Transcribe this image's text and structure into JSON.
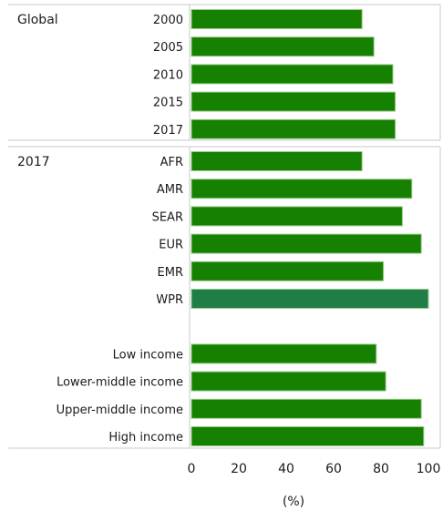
{
  "chart_data": {
    "type": "bar",
    "orientation": "horizontal",
    "xlabel": "(%)",
    "xlim": [
      0,
      100
    ],
    "x_ticks": [
      "0",
      "20",
      "40",
      "60",
      "80",
      "100"
    ],
    "grid": false,
    "colors": {
      "bar": "#168000",
      "highlight": "#1e7e45",
      "bar_edge": "#9acb8e"
    },
    "panels": [
      {
        "title": "Global",
        "rows": [
          {
            "label": "2000",
            "value": 72
          },
          {
            "label": "2005",
            "value": 77
          },
          {
            "label": "2010",
            "value": 85
          },
          {
            "label": "2015",
            "value": 86
          },
          {
            "label": "2017",
            "value": 86
          }
        ]
      },
      {
        "title": "2017",
        "rows": [
          {
            "label": "AFR",
            "value": 72
          },
          {
            "label": "AMR",
            "value": 93
          },
          {
            "label": "SEAR",
            "value": 89
          },
          {
            "label": "EUR",
            "value": 97
          },
          {
            "label": "EMR",
            "value": 81
          },
          {
            "label": "WPR",
            "value": 100,
            "highlight": true
          },
          {
            "label": "",
            "value": null
          },
          {
            "label": "Low income",
            "value": 78
          },
          {
            "label": "Lower-middle income",
            "value": 82
          },
          {
            "label": "Upper-middle income",
            "value": 97
          },
          {
            "label": "High income",
            "value": 98
          }
        ]
      }
    ]
  }
}
